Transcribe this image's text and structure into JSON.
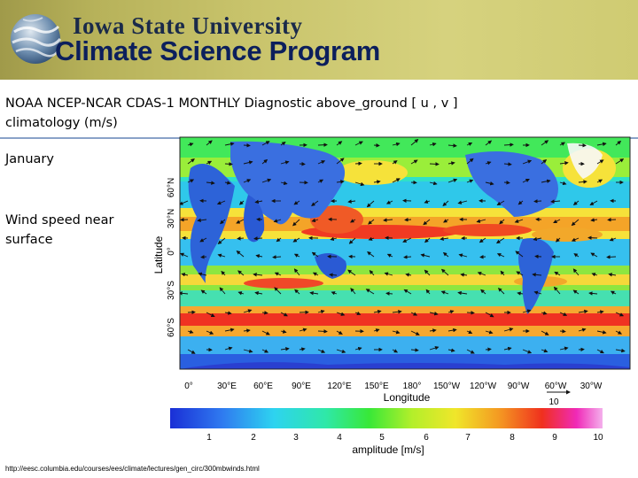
{
  "header": {
    "university": "Iowa State University",
    "program": "Climate Science Program"
  },
  "slide": {
    "title": "NOAA NCEP-NCAR CDAS-1 MONTHLY Diagnostic above_ground [ u , v ] climatology (m/s)",
    "month": "January",
    "description": "Wind speed near surface",
    "source_url": "http://eesc.columbia.edu/courses/ees/climate/lectures/gen_circ/300mbwinds.html"
  },
  "map": {
    "y_axis_label": "Latitude",
    "x_axis_label": "Longitude",
    "lat_ticks": [
      "60°N",
      "30°N",
      "0°",
      "30°S",
      "60°S"
    ],
    "lon_ticks": [
      "0°",
      "30°E",
      "60°E",
      "90°E",
      "120°E",
      "150°E",
      "180°",
      "150°W",
      "120°W",
      "90°W",
      "60°W",
      "30°W"
    ],
    "vector_scale": "10"
  },
  "colorbar": {
    "label": "amplitude [m/s]",
    "ticks": [
      "1",
      "2",
      "3",
      "4",
      "5",
      "6",
      "7",
      "8",
      "9",
      "10"
    ]
  },
  "colors": {
    "banner": "#c9c46c",
    "program_text": "#0c1f5c"
  }
}
